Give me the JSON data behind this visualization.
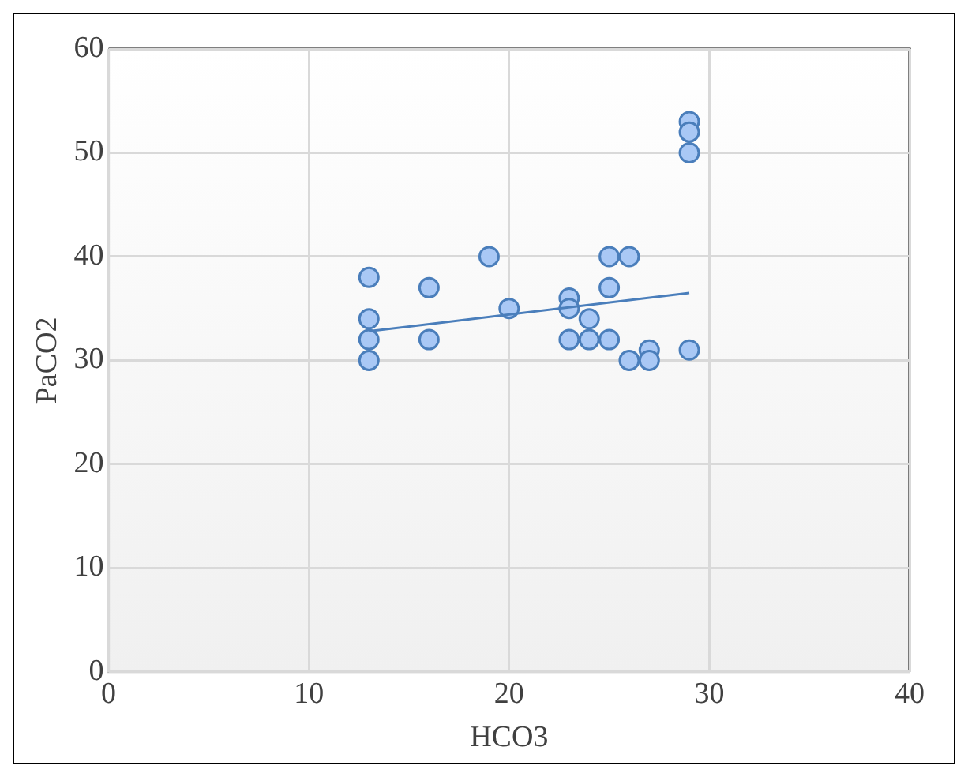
{
  "chart_data": {
    "type": "scatter",
    "xlabel": "HCO3",
    "ylabel": "PaCO2",
    "xlim": [
      0,
      40
    ],
    "xticks": [
      0,
      10,
      20,
      30,
      40
    ],
    "ylim": [
      0,
      60
    ],
    "yticks": [
      0,
      10,
      20,
      30,
      40,
      50,
      60
    ],
    "grid": true,
    "marker": "circle",
    "legend": false,
    "series": [
      {
        "color": "#a9c8f5",
        "x": [
          13,
          13,
          13,
          13,
          16,
          16,
          19,
          20,
          23,
          23,
          23,
          24,
          24,
          25,
          25,
          25,
          26,
          26,
          27,
          27,
          29,
          29,
          29,
          29
        ],
        "values": [
          38,
          34,
          32,
          30,
          37,
          32,
          40,
          35,
          36,
          35,
          32,
          34,
          32,
          40,
          37,
          32,
          40,
          30,
          31,
          30,
          53,
          52,
          50,
          31
        ]
      },
      {
        "type": "line",
        "color": "#4a7ebb",
        "marker": "none",
        "x": [
          13,
          29
        ],
        "values": [
          32.8,
          36.5
        ]
      }
    ]
  }
}
